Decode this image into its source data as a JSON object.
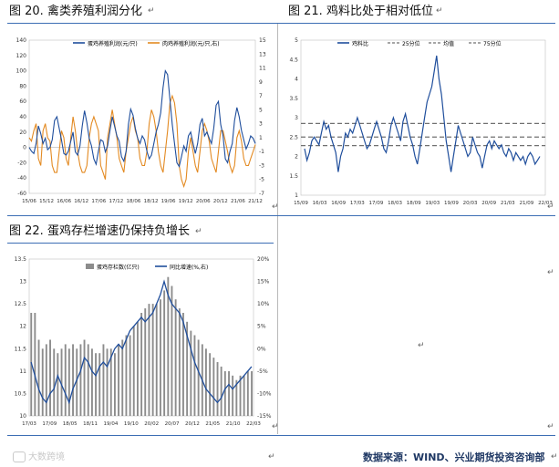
{
  "panels": {
    "fig20_title": "图 20. 禽类养殖利润分化",
    "fig21_title": "图 21. 鸡料比处于相对低位",
    "fig22_title": "图 22. 蛋鸡存栏增速仍保持负增长"
  },
  "footer": {
    "source": "数据来源：WIND、兴业期货投资咨询部",
    "watermark": "大数跨境"
  },
  "chart_data": [
    {
      "id": "fig20",
      "type": "line",
      "title": "禽类养殖利润分化",
      "series": [
        {
          "name": "蛋鸡养殖利润(元/只)",
          "axis": "left",
          "color": "#1f4e9c",
          "values": [
            0,
            -5,
            -8,
            5,
            28,
            18,
            5,
            12,
            -3,
            0,
            10,
            35,
            40,
            25,
            10,
            -8,
            -10,
            -5,
            8,
            20,
            -6,
            -10,
            2,
            28,
            48,
            32,
            12,
            2,
            -15,
            -22,
            -5,
            10,
            8,
            -6,
            2,
            22,
            40,
            28,
            15,
            8,
            -12,
            -18,
            -5,
            30,
            50,
            42,
            25,
            12,
            5,
            15,
            10,
            -5,
            -15,
            -10,
            5,
            20,
            30,
            45,
            78,
            100,
            95,
            62,
            30,
            5,
            -20,
            -25,
            -12,
            2,
            -5,
            15,
            20,
            5,
            -8,
            5,
            30,
            38,
            15,
            20,
            12,
            5,
            25,
            55,
            60,
            30,
            15,
            -15,
            -20,
            -5,
            5,
            35,
            52,
            40,
            22,
            10,
            -2,
            5,
            15,
            12,
            5
          ]
        },
        {
          "name": "肉鸡养殖利润(元/只,右)",
          "axis": "right",
          "color": "#e38a22",
          "values": [
            1,
            0.5,
            2,
            3,
            -2,
            -3,
            2,
            3,
            1,
            0.5,
            -3,
            -4,
            -4,
            -1,
            2,
            1,
            -2,
            -3,
            1,
            4,
            2,
            -1,
            -3,
            -4,
            -4,
            -3,
            1,
            3,
            4,
            3,
            2,
            -3,
            -4,
            -5,
            1,
            3,
            5,
            3,
            1,
            -2,
            -3,
            -4,
            -1,
            1,
            3,
            4,
            2,
            1,
            -2,
            -3,
            -3,
            -1,
            3,
            5,
            4,
            2,
            -1,
            -3,
            -4,
            -1,
            2,
            6,
            7,
            6,
            3,
            -3,
            -5,
            -6,
            -5,
            -1,
            1,
            -1,
            -3,
            -4,
            -1,
            2,
            3,
            2,
            0.5,
            -2,
            -3,
            -4,
            -1,
            2,
            2,
            0.5,
            -1,
            -3,
            -4,
            -3,
            1,
            2,
            0.5,
            -2,
            -3,
            -3,
            -2,
            -1,
            0
          ]
        }
      ],
      "x_ticks": [
        "15/06",
        "15/12",
        "16/06",
        "16/12",
        "17/06",
        "17/12",
        "18/06",
        "18/12",
        "19/06",
        "19/12",
        "20/06",
        "20/12",
        "21/06",
        "21/12"
      ],
      "y_left_ticks": [
        -60,
        -40,
        -20,
        0,
        20,
        40,
        60,
        80,
        100,
        120,
        140
      ],
      "y_right_ticks": [
        -7,
        -5,
        -3,
        -1,
        1,
        3,
        5,
        7,
        9,
        11,
        13,
        15
      ],
      "ylim_left": [
        -60,
        140
      ],
      "ylim_right": [
        -7,
        15
      ]
    },
    {
      "id": "fig21",
      "type": "line",
      "title": "鸡料比处于相对低位",
      "series": [
        {
          "name": "鸡料比",
          "color": "#1f4e9c",
          "values": [
            2.2,
            1.9,
            2.1,
            2.4,
            2.5,
            2.4,
            2.3,
            2.6,
            2.9,
            2.7,
            2.8,
            2.5,
            2.3,
            2.1,
            1.6,
            2.0,
            2.2,
            2.6,
            2.5,
            2.7,
            2.6,
            2.8,
            3.0,
            2.8,
            2.6,
            2.4,
            2.2,
            2.3,
            2.5,
            2.7,
            2.9,
            2.7,
            2.5,
            2.2,
            2.1,
            2.4,
            2.8,
            3.0,
            2.8,
            2.6,
            2.4,
            2.9,
            3.1,
            2.8,
            2.5,
            2.3,
            2.0,
            1.8,
            2.2,
            2.6,
            3.0,
            3.4,
            3.6,
            3.8,
            4.2,
            4.6,
            4.0,
            3.6,
            3.0,
            2.4,
            2.0,
            1.6,
            2.0,
            2.4,
            2.8,
            2.6,
            2.4,
            2.2,
            2.0,
            2.1,
            2.5,
            2.3,
            2.1,
            2.0,
            1.7,
            2.0,
            2.3,
            2.4,
            2.2,
            2.4,
            2.3,
            2.2,
            2.3,
            2.1,
            2.0,
            2.2,
            2.1,
            1.9,
            2.1,
            2.0,
            1.9,
            2.0,
            1.8,
            2.0,
            2.1,
            2.0,
            1.8,
            1.9,
            2.0
          ]
        },
        {
          "name": "25分位",
          "value": 2.28,
          "dashed": true,
          "color": "#707070"
        },
        {
          "name": "均值",
          "value": 2.5,
          "dashed": true,
          "color": "#707070"
        },
        {
          "name": "75分位",
          "value": 2.85,
          "dashed": true,
          "color": "#707070"
        }
      ],
      "x_ticks": [
        "15/09",
        "16/03",
        "16/09",
        "17/03",
        "17/09",
        "18/03",
        "18/09",
        "19/03",
        "19/09",
        "20/03",
        "20/09",
        "21/03",
        "21/09",
        "22/03"
      ],
      "y_ticks": [
        1,
        1.5,
        2,
        2.5,
        3,
        3.5,
        4,
        4.5,
        5
      ],
      "ylim": [
        1,
        5
      ]
    },
    {
      "id": "fig22",
      "type": "bar",
      "title": "蛋鸡存栏增速仍保持负增长",
      "series": [
        {
          "name": "蛋鸡存栏数(亿只)",
          "axis": "left",
          "kind": "bar",
          "color": "#8c8c8c",
          "values": [
            12.3,
            12.3,
            11.7,
            11.5,
            11.6,
            11.7,
            11.5,
            11.4,
            11.5,
            11.6,
            11.5,
            11.6,
            11.5,
            11.6,
            11.7,
            11.6,
            11.5,
            11.4,
            11.4,
            11.6,
            11.5,
            11.5,
            11.4,
            11.6,
            11.7,
            11.8,
            11.8,
            12.0,
            12.1,
            12.3,
            12.4,
            12.5,
            12.5,
            12.5,
            12.6,
            12.8,
            13.1,
            12.9,
            12.6,
            12.4,
            12.3,
            12.1,
            11.9,
            11.8,
            11.7,
            11.6,
            11.5,
            11.4,
            11.3,
            11.2,
            11.1,
            11.0,
            11.0,
            10.9,
            10.8,
            10.9,
            10.9,
            11.0,
            11.0
          ]
        },
        {
          "name": "同比增速(%,右)",
          "axis": "right",
          "kind": "line",
          "color": "#1f4e9c",
          "values": [
            -3,
            -6,
            -9,
            -11,
            -12,
            -10,
            -9,
            -6,
            -8,
            -10,
            -12,
            -9,
            -7,
            -5,
            -2,
            -3,
            -5,
            -6,
            -4,
            -3,
            -4,
            -2,
            0,
            1,
            0,
            2,
            4,
            5,
            6,
            7,
            6,
            7,
            8,
            10,
            12,
            15,
            12,
            10,
            9,
            8,
            6,
            3,
            0,
            -3,
            -5,
            -7,
            -9,
            -10,
            -11,
            -12,
            -11,
            -9,
            -8,
            -9,
            -8,
            -7,
            -6,
            -5,
            -4
          ]
        }
      ],
      "x_ticks": [
        "17/03",
        "17/09",
        "18/05",
        "18/11",
        "19/04",
        "19/10",
        "20/02",
        "20/07",
        "20/12",
        "21/05",
        "21/10",
        "22/03"
      ],
      "y_left_ticks": [
        10,
        10.5,
        11,
        11.5,
        12,
        12.5,
        13,
        13.5
      ],
      "y_right_ticks": [
        "-15%",
        "-10%",
        "-5%",
        "0%",
        "5%",
        "10%",
        "15%",
        "20%"
      ],
      "ylim_left": [
        10,
        13.5
      ],
      "ylim_right": [
        -15,
        20
      ]
    }
  ]
}
